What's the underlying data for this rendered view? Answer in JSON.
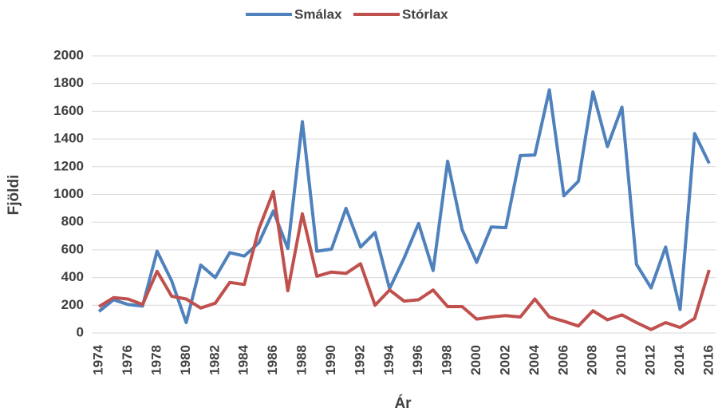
{
  "chart_data": {
    "type": "line",
    "x_label": "Ár",
    "y_label": "Fjöldi",
    "x": [
      1974,
      1975,
      1976,
      1977,
      1978,
      1979,
      1980,
      1981,
      1982,
      1983,
      1984,
      1985,
      1986,
      1987,
      1988,
      1989,
      1990,
      1991,
      1992,
      1993,
      1994,
      1995,
      1996,
      1997,
      1998,
      1999,
      2000,
      2001,
      2002,
      2003,
      2004,
      2005,
      2006,
      2007,
      2008,
      2009,
      2010,
      2011,
      2012,
      2013,
      2014,
      2015,
      2016
    ],
    "series": [
      {
        "name": "Smálax",
        "color": "#4f81bd",
        "values": [
          155,
          240,
          205,
          195,
          590,
          375,
          75,
          490,
          400,
          580,
          555,
          650,
          880,
          610,
          1525,
          590,
          605,
          900,
          620,
          725,
          320,
          540,
          790,
          450,
          1240,
          745,
          510,
          765,
          760,
          1280,
          1285,
          1755,
          990,
          1095,
          1740,
          1345,
          1630,
          495,
          325,
          620,
          170,
          1440,
          1225
        ]
      },
      {
        "name": "Stórlax",
        "color": "#c0504d",
        "values": [
          190,
          255,
          245,
          205,
          445,
          265,
          245,
          180,
          215,
          365,
          350,
          750,
          1020,
          305,
          860,
          410,
          440,
          430,
          500,
          200,
          310,
          230,
          240,
          310,
          190,
          190,
          100,
          115,
          125,
          115,
          245,
          115,
          85,
          50,
          160,
          95,
          130,
          75,
          25,
          75,
          40,
          105,
          455
        ]
      }
    ],
    "xlim": [
      1973.5,
      2016.5
    ],
    "xticks": [
      1974,
      1976,
      1978,
      1980,
      1982,
      1984,
      1986,
      1988,
      1990,
      1992,
      1994,
      1996,
      1998,
      2000,
      2002,
      2004,
      2006,
      2008,
      2010,
      2012,
      2014,
      2016
    ],
    "ylim": [
      0,
      2000
    ],
    "yticks": [
      0,
      200,
      400,
      600,
      800,
      1000,
      1200,
      1400,
      1600,
      1800,
      2000
    ],
    "grid": true,
    "legend": "top"
  }
}
